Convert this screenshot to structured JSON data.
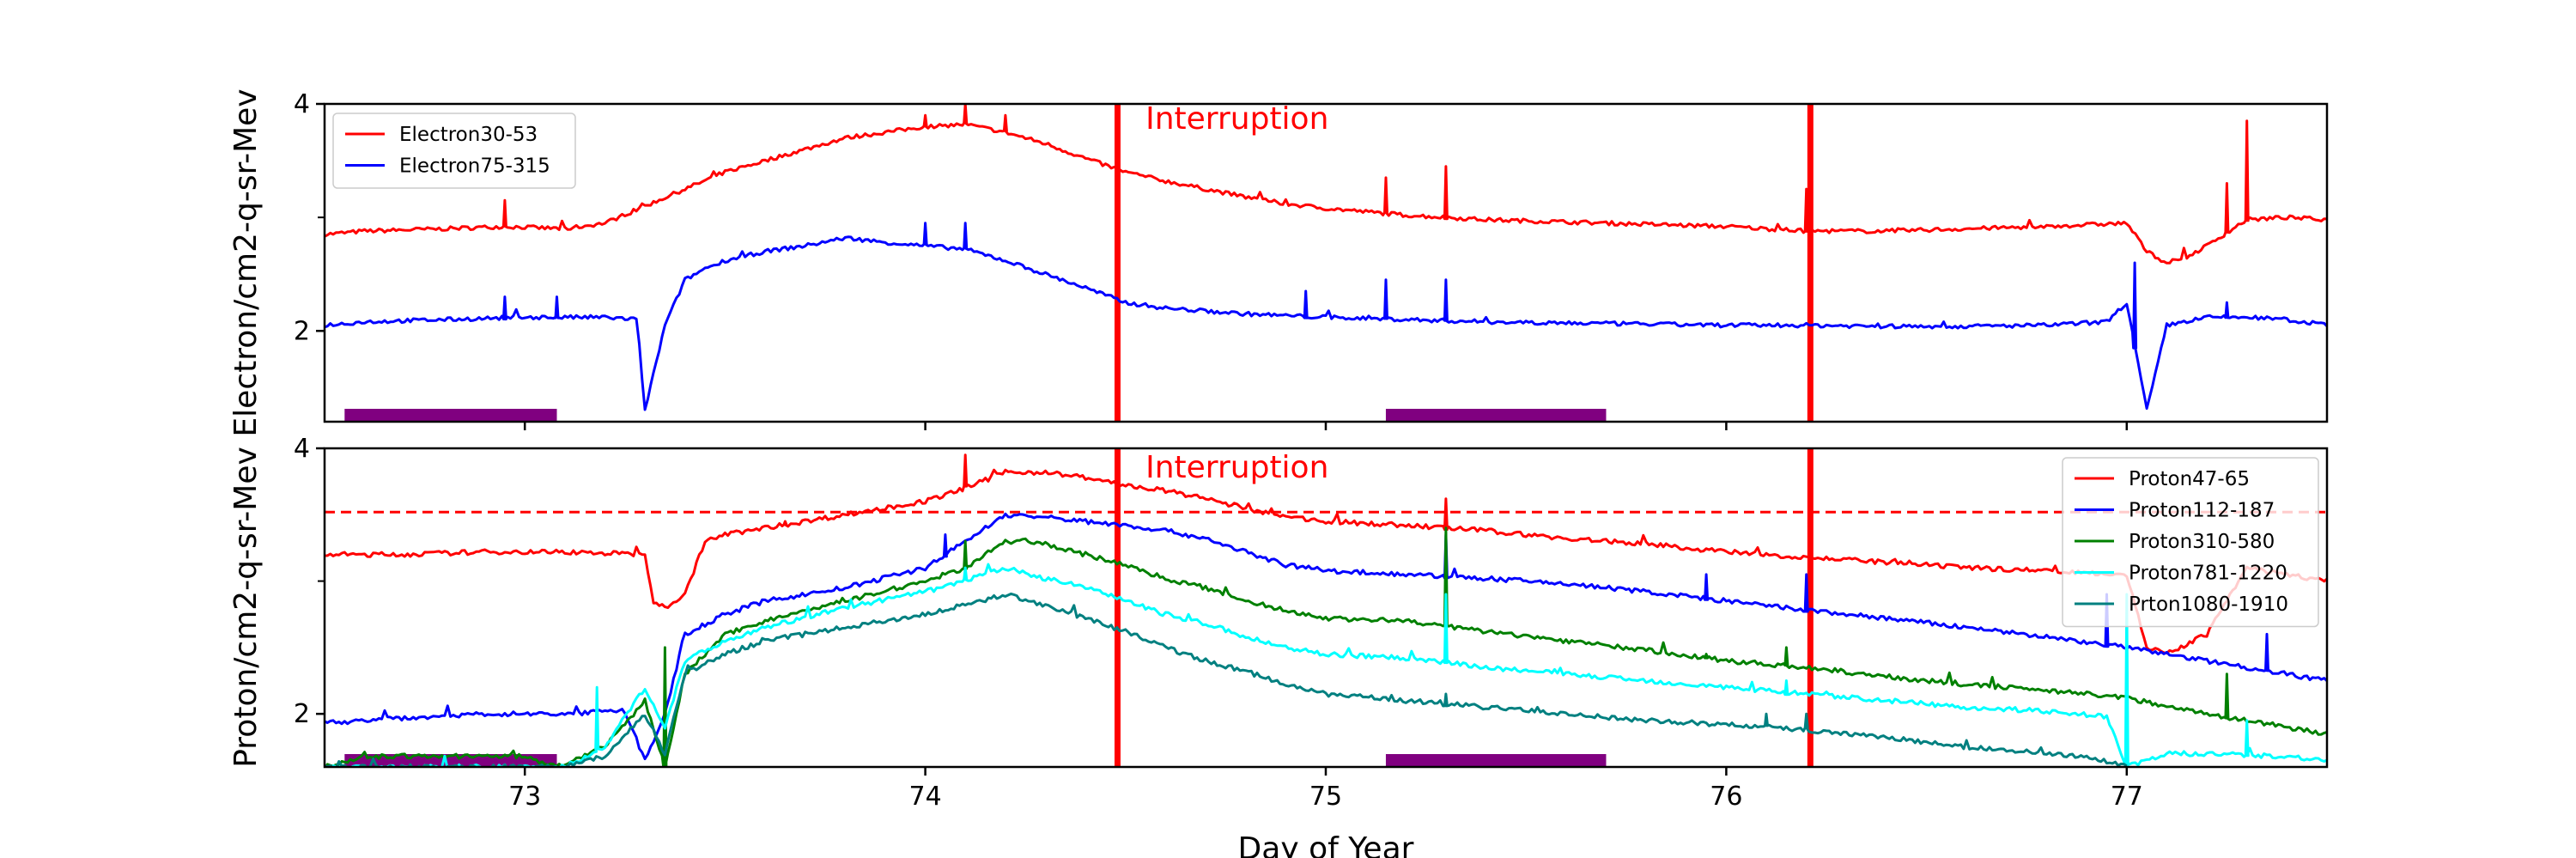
{
  "chart_data": [
    {
      "type": "line",
      "panel": "top",
      "ylabel": "Electron/cm2-q-sr-Mev",
      "xlim": [
        72.5,
        77.5
      ],
      "ylim": [
        1.2,
        4
      ],
      "yticks": [
        2,
        4
      ],
      "ytick_labels": [
        "2",
        "4"
      ],
      "ytick_minor": [
        3
      ],
      "xticks": [
        73,
        74,
        75,
        76,
        77
      ],
      "annotation": {
        "text": "Interruption",
        "x": 74.55,
        "y": 3.78,
        "color": "#ff0000"
      },
      "vlines": [
        74.48,
        76.21
      ],
      "vline_color": "#ff0000",
      "purple_bars": [
        [
          72.55,
          73.08
        ],
        [
          75.15,
          75.7
        ]
      ],
      "purple_color": "#800080",
      "legend_position": "upper-left",
      "series": [
        {
          "name": "Electron30-53",
          "color": "#ff0000",
          "x": [
            72.5,
            72.6,
            72.8,
            72.95,
            73.1,
            73.2,
            73.3,
            73.4,
            73.5,
            73.6,
            73.7,
            73.8,
            73.9,
            74.0,
            74.1,
            74.2,
            74.3,
            74.4,
            74.5,
            74.6,
            74.7,
            74.8,
            74.9,
            75.0,
            75.2,
            75.4,
            75.6,
            75.8,
            76.0,
            76.2,
            76.4,
            76.6,
            76.8,
            77.0,
            77.05,
            77.1,
            77.15,
            77.2,
            77.3,
            77.4,
            77.5
          ],
          "y": [
            2.85,
            2.88,
            2.9,
            2.92,
            2.9,
            2.95,
            3.1,
            3.25,
            3.4,
            3.5,
            3.6,
            3.7,
            3.75,
            3.8,
            3.82,
            3.75,
            3.65,
            3.52,
            3.4,
            3.32,
            3.25,
            3.18,
            3.12,
            3.08,
            3.02,
            2.98,
            2.96,
            2.94,
            2.92,
            2.88,
            2.88,
            2.9,
            2.92,
            2.95,
            2.7,
            2.6,
            2.65,
            2.75,
            2.98,
            3.0,
            2.98
          ],
          "spikes": [
            [
              72.95,
              3.15
            ],
            [
              74.0,
              3.9
            ],
            [
              74.1,
              4.0
            ],
            [
              74.2,
              3.9
            ],
            [
              75.15,
              3.35
            ],
            [
              75.3,
              3.45
            ],
            [
              76.2,
              3.25
            ],
            [
              77.3,
              3.85
            ],
            [
              77.25,
              3.3
            ]
          ]
        },
        {
          "name": "Electron75-315",
          "color": "#0000ff",
          "x": [
            72.5,
            72.6,
            72.8,
            73.0,
            73.1,
            73.2,
            73.28,
            73.3,
            73.35,
            73.4,
            73.45,
            73.5,
            73.6,
            73.7,
            73.8,
            73.9,
            74.0,
            74.1,
            74.2,
            74.3,
            74.4,
            74.5,
            74.6,
            74.8,
            75.0,
            75.2,
            75.4,
            75.6,
            75.8,
            76.0,
            76.2,
            76.4,
            76.6,
            76.8,
            76.95,
            77.0,
            77.05,
            77.1,
            77.2,
            77.3,
            77.4,
            77.5
          ],
          "y": [
            2.05,
            2.08,
            2.1,
            2.12,
            2.12,
            2.12,
            2.1,
            1.3,
            2.05,
            2.45,
            2.55,
            2.62,
            2.7,
            2.75,
            2.82,
            2.78,
            2.75,
            2.72,
            2.62,
            2.5,
            2.38,
            2.25,
            2.2,
            2.15,
            2.12,
            2.1,
            2.08,
            2.07,
            2.06,
            2.05,
            2.05,
            2.04,
            2.04,
            2.05,
            2.08,
            2.25,
            1.3,
            2.05,
            2.12,
            2.12,
            2.1,
            2.05
          ],
          "spikes": [
            [
              72.95,
              2.3
            ],
            [
              73.08,
              2.3
            ],
            [
              74.0,
              2.95
            ],
            [
              74.1,
              2.95
            ],
            [
              74.95,
              2.35
            ],
            [
              75.15,
              2.45
            ],
            [
              75.3,
              2.45
            ],
            [
              77.02,
              2.6
            ],
            [
              77.25,
              2.25
            ]
          ]
        }
      ]
    },
    {
      "type": "line",
      "panel": "bottom",
      "ylabel": "Proton/cm2-q-sr-Mev",
      "xlabel": "Day of Year",
      "xlim": [
        72.5,
        77.5
      ],
      "ylim": [
        1.6,
        4
      ],
      "yticks": [
        2,
        4
      ],
      "ytick_labels": [
        "2",
        "4"
      ],
      "ytick_minor": [
        3
      ],
      "xticks": [
        73,
        74,
        75,
        76,
        77
      ],
      "xtick_labels": [
        "73",
        "74",
        "75",
        "76",
        "77"
      ],
      "annotation": {
        "text": "Interruption",
        "x": 74.55,
        "y": 3.78,
        "color": "#ff0000"
      },
      "vlines": [
        74.48,
        76.21
      ],
      "vline_color": "#ff0000",
      "hline": {
        "y": 3.52,
        "color": "#ff0000",
        "style": "dashed"
      },
      "purple_bars": [
        [
          72.55,
          73.08
        ],
        [
          75.15,
          75.7
        ]
      ],
      "purple_color": "#800080",
      "legend_position": "upper-right",
      "series": [
        {
          "name": "Proton47-65",
          "color": "#ff0000",
          "x": [
            72.5,
            72.7,
            72.9,
            73.1,
            73.3,
            73.32,
            73.35,
            73.4,
            73.45,
            73.5,
            73.6,
            73.7,
            73.8,
            73.9,
            74.0,
            74.1,
            74.2,
            74.3,
            74.4,
            74.5,
            74.6,
            74.7,
            74.8,
            74.9,
            75.0,
            75.2,
            75.4,
            75.6,
            75.8,
            76.0,
            76.2,
            76.4,
            76.6,
            76.8,
            77.0,
            77.05,
            77.1,
            77.2,
            77.3,
            77.4,
            77.5
          ],
          "y": [
            3.2,
            3.2,
            3.22,
            3.22,
            3.2,
            2.85,
            2.8,
            2.9,
            3.3,
            3.35,
            3.4,
            3.45,
            3.5,
            3.55,
            3.6,
            3.7,
            3.82,
            3.82,
            3.78,
            3.72,
            3.68,
            3.62,
            3.55,
            3.48,
            3.45,
            3.42,
            3.38,
            3.32,
            3.28,
            3.22,
            3.18,
            3.14,
            3.1,
            3.08,
            3.05,
            2.5,
            2.45,
            2.6,
            3.1,
            3.05,
            3.0
          ],
          "spikes": [
            [
              73.65,
              3.45
            ],
            [
              74.1,
              3.95
            ],
            [
              75.3,
              3.62
            ]
          ]
        },
        {
          "name": "Proton112-187",
          "color": "#0000ff",
          "x": [
            72.5,
            72.7,
            72.9,
            73.1,
            73.25,
            73.3,
            73.35,
            73.4,
            73.5,
            73.6,
            73.8,
            74.0,
            74.1,
            74.2,
            74.3,
            74.4,
            74.5,
            74.6,
            74.7,
            74.8,
            74.9,
            75.0,
            75.2,
            75.4,
            75.6,
            75.8,
            76.0,
            76.2,
            76.4,
            76.6,
            76.8,
            77.0,
            77.2,
            77.4,
            77.5
          ],
          "y": [
            1.93,
            1.97,
            2.0,
            2.0,
            2.02,
            1.65,
            2.0,
            2.6,
            2.75,
            2.85,
            2.95,
            3.1,
            3.3,
            3.5,
            3.48,
            3.45,
            3.42,
            3.38,
            3.32,
            3.22,
            3.12,
            3.08,
            3.05,
            3.02,
            2.98,
            2.92,
            2.85,
            2.78,
            2.72,
            2.65,
            2.58,
            2.5,
            2.4,
            2.3,
            2.25
          ],
          "spikes": [
            [
              74.05,
              3.35
            ],
            [
              75.3,
              3.35
            ],
            [
              75.95,
              3.05
            ],
            [
              76.2,
              3.05
            ],
            [
              76.95,
              2.9
            ],
            [
              77.35,
              2.6
            ]
          ]
        },
        {
          "name": "Proton310-580",
          "color": "#008000",
          "x": [
            72.5,
            72.6,
            72.8,
            73.0,
            73.08,
            73.2,
            73.3,
            73.35,
            73.4,
            73.5,
            73.6,
            73.8,
            74.0,
            74.1,
            74.2,
            74.3,
            74.4,
            74.5,
            74.6,
            74.7,
            74.8,
            74.9,
            75.0,
            75.2,
            75.4,
            75.6,
            75.8,
            76.0,
            76.2,
            76.4,
            76.6,
            76.8,
            77.0,
            77.2,
            77.4,
            77.5
          ],
          "y": [
            1.6,
            1.68,
            1.68,
            1.68,
            1.6,
            1.75,
            2.1,
            1.6,
            2.3,
            2.6,
            2.7,
            2.85,
            3.0,
            3.1,
            3.3,
            3.28,
            3.2,
            3.12,
            3.02,
            2.95,
            2.85,
            2.78,
            2.72,
            2.7,
            2.62,
            2.55,
            2.48,
            2.4,
            2.35,
            2.28,
            2.22,
            2.18,
            2.12,
            2.0,
            1.9,
            1.85
          ],
          "spikes": [
            [
              73.35,
              2.5
            ],
            [
              74.1,
              3.3
            ],
            [
              75.3,
              3.4
            ],
            [
              75.95,
              2.45
            ],
            [
              76.15,
              2.5
            ],
            [
              77.25,
              2.3
            ]
          ]
        },
        {
          "name": "Proton781-1220",
          "color": "#00ffff",
          "x": [
            72.5,
            73.1,
            73.2,
            73.3,
            73.35,
            73.4,
            73.5,
            73.6,
            73.8,
            74.0,
            74.1,
            74.2,
            74.3,
            74.4,
            74.5,
            74.6,
            74.7,
            74.8,
            74.9,
            75.0,
            75.2,
            75.4,
            75.6,
            75.8,
            76.0,
            76.2,
            76.4,
            76.6,
            76.8,
            76.95,
            77.0,
            77.1,
            77.2,
            77.4,
            77.5
          ],
          "y": [
            1.6,
            1.6,
            1.75,
            2.2,
            1.9,
            2.4,
            2.55,
            2.65,
            2.8,
            2.92,
            3.0,
            3.1,
            3.02,
            2.95,
            2.85,
            2.75,
            2.68,
            2.58,
            2.5,
            2.45,
            2.42,
            2.35,
            2.3,
            2.25,
            2.2,
            2.15,
            2.1,
            2.05,
            2.02,
            1.98,
            1.6,
            1.7,
            1.7,
            1.68,
            1.65
          ],
          "spikes": [
            [
              73.18,
              2.2
            ],
            [
              74.1,
              3.1
            ],
            [
              75.3,
              2.9
            ],
            [
              76.15,
              2.25
            ],
            [
              77.0,
              2.9
            ],
            [
              77.3,
              1.95
            ]
          ]
        },
        {
          "name": "Prton1080-1910",
          "color": "#008080",
          "x": [
            72.5,
            73.1,
            73.2,
            73.3,
            73.35,
            73.4,
            73.5,
            73.6,
            73.8,
            74.0,
            74.1,
            74.2,
            74.3,
            74.4,
            74.5,
            74.6,
            74.7,
            74.8,
            74.9,
            75.0,
            75.2,
            75.4,
            75.6,
            75.8,
            76.0,
            76.2,
            76.4,
            76.6,
            76.8,
            76.9,
            77.0
          ],
          "y": [
            1.6,
            1.6,
            1.68,
            2.0,
            1.7,
            2.3,
            2.45,
            2.55,
            2.65,
            2.75,
            2.82,
            2.9,
            2.82,
            2.72,
            2.62,
            2.5,
            2.4,
            2.32,
            2.22,
            2.15,
            2.1,
            2.05,
            2.0,
            1.95,
            1.92,
            1.88,
            1.82,
            1.75,
            1.7,
            1.68,
            1.6
          ],
          "spikes": [
            [
              75.3,
              2.15
            ],
            [
              76.1,
              2.0
            ],
            [
              76.2,
              2.0
            ]
          ]
        }
      ]
    }
  ]
}
